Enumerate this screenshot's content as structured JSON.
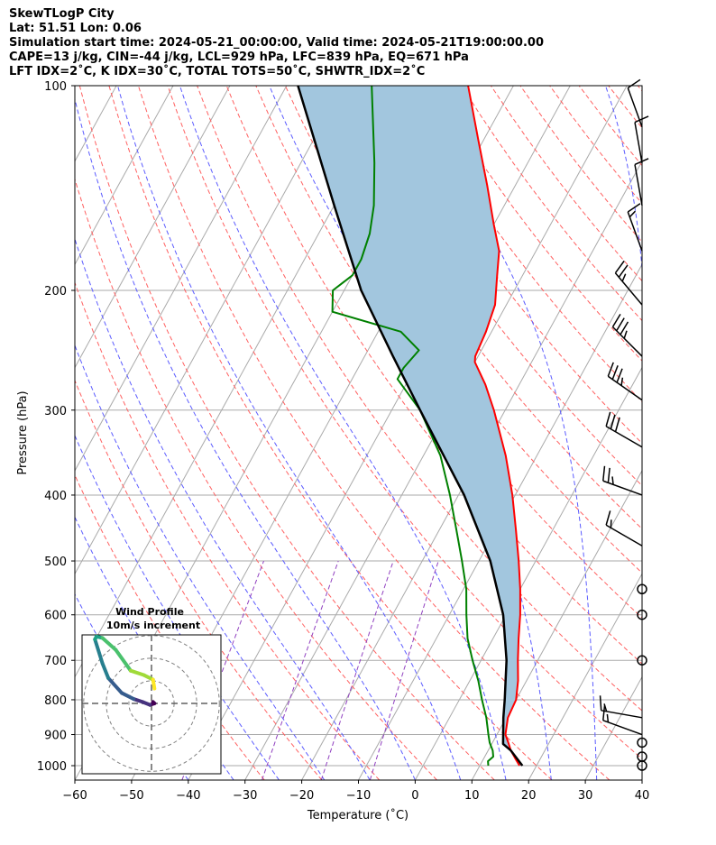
{
  "header": {
    "line1": "SkewTLogP City",
    "line2": "Lat: 51.51   Lon: 0.06",
    "line3": "Simulation start time: 2024-05-21_00:00:00, Valid time: 2024-05-21T19:00:00.00",
    "line4": "CAPE=13 j/kg, CIN=-44 j/kg, LCL=929 hPa, LFC=839 hPa, EQ=671 hPa",
    "line5": "LFT IDX=2˚C, K IDX=30˚C, TOTAL TOTS=50˚C, SHWTR_IDX=2˚C"
  },
  "chart_data": {
    "type": "skew-t log-p",
    "xlabel": "Temperature (˚C)",
    "ylabel": "Pressure (hPa)",
    "x_ticks": [
      "−60",
      "−50",
      "−40",
      "−30",
      "−20",
      "−10",
      "0",
      "10",
      "20",
      "30",
      "40"
    ],
    "y_ticks": [
      "100",
      "200",
      "300",
      "400",
      "500",
      "600",
      "700",
      "800",
      "900",
      "1000"
    ],
    "xlim": [
      -60,
      40
    ],
    "ylim": [
      1050,
      100
    ],
    "temperature_profile": [
      {
        "p": 1000,
        "t": 17.0
      },
      {
        "p": 975,
        "t": 15.5
      },
      {
        "p": 950,
        "t": 14.0
      },
      {
        "p": 925,
        "t": 12.8
      },
      {
        "p": 900,
        "t": 11.5
      },
      {
        "p": 850,
        "t": 10.3
      },
      {
        "p": 800,
        "t": 10.0
      },
      {
        "p": 750,
        "t": 8.5
      },
      {
        "p": 700,
        "t": 6.5
      },
      {
        "p": 650,
        "t": 4.5
      },
      {
        "p": 600,
        "t": 2.5
      },
      {
        "p": 550,
        "t": 0.0
      },
      {
        "p": 500,
        "t": -3.0
      },
      {
        "p": 450,
        "t": -6.5
      },
      {
        "p": 400,
        "t": -10.5
      },
      {
        "p": 350,
        "t": -15.5
      },
      {
        "p": 300,
        "t": -22.0
      },
      {
        "p": 275,
        "t": -26.0
      },
      {
        "p": 255,
        "t": -30.0
      },
      {
        "p": 250,
        "t": -30.5
      },
      {
        "p": 230,
        "t": -31.0
      },
      {
        "p": 210,
        "t": -32.0
      },
      {
        "p": 190,
        "t": -34.5
      },
      {
        "p": 175,
        "t": -36.5
      },
      {
        "p": 160,
        "t": -40.0
      },
      {
        "p": 140,
        "t": -45.0
      },
      {
        "p": 120,
        "t": -51.0
      },
      {
        "p": 100,
        "t": -58.0
      }
    ],
    "dewpoint_profile": [
      {
        "p": 1000,
        "t": 11.5
      },
      {
        "p": 985,
        "t": 11.0
      },
      {
        "p": 970,
        "t": 11.5
      },
      {
        "p": 950,
        "t": 10.8
      },
      {
        "p": 925,
        "t": 9.5
      },
      {
        "p": 900,
        "t": 8.5
      },
      {
        "p": 850,
        "t": 6.5
      },
      {
        "p": 800,
        "t": 4.0
      },
      {
        "p": 750,
        "t": 1.5
      },
      {
        "p": 700,
        "t": -1.5
      },
      {
        "p": 650,
        "t": -4.5
      },
      {
        "p": 600,
        "t": -7.0
      },
      {
        "p": 550,
        "t": -9.5
      },
      {
        "p": 500,
        "t": -13.0
      },
      {
        "p": 450,
        "t": -17.0
      },
      {
        "p": 400,
        "t": -21.5
      },
      {
        "p": 350,
        "t": -27.0
      },
      {
        "p": 300,
        "t": -35.0
      },
      {
        "p": 270,
        "t": -42.0
      },
      {
        "p": 260,
        "t": -42.0
      },
      {
        "p": 245,
        "t": -41.0
      },
      {
        "p": 230,
        "t": -46.0
      },
      {
        "p": 215,
        "t": -60.0
      },
      {
        "p": 200,
        "t": -62.0
      },
      {
        "p": 190,
        "t": -60.0
      },
      {
        "p": 180,
        "t": -60.0
      },
      {
        "p": 165,
        "t": -61.0
      },
      {
        "p": 150,
        "t": -63.0
      },
      {
        "p": 130,
        "t": -67.0
      },
      {
        "p": 100,
        "t": -75.0
      }
    ],
    "parcel_profile": [
      {
        "p": 1000,
        "t": 17.5
      },
      {
        "p": 950,
        "t": 14.0
      },
      {
        "p": 929,
        "t": 12.0
      },
      {
        "p": 850,
        "t": 9.5
      },
      {
        "p": 800,
        "t": 8.0
      },
      {
        "p": 700,
        "t": 4.5
      },
      {
        "p": 600,
        "t": -0.5
      },
      {
        "p": 500,
        "t": -8.0
      },
      {
        "p": 400,
        "t": -19.0
      },
      {
        "p": 300,
        "t": -35.0
      },
      {
        "p": 250,
        "t": -45.0
      },
      {
        "p": 200,
        "t": -57.0
      },
      {
        "p": 150,
        "t": -70.0
      },
      {
        "p": 100,
        "t": -88.0
      }
    ],
    "wind_barbs": [
      {
        "p": 1000,
        "speed_kt": 0
      },
      {
        "p": 970,
        "speed_kt": 0
      },
      {
        "p": 925,
        "speed_kt": 0
      },
      {
        "p": 900,
        "speed_kt": 15,
        "dir": 290
      },
      {
        "p": 850,
        "speed_kt": 15,
        "dir": 280
      },
      {
        "p": 700,
        "speed_kt": 0
      },
      {
        "p": 600,
        "speed_kt": 0
      },
      {
        "p": 550,
        "speed_kt": 0
      },
      {
        "p": 475,
        "speed_kt": 15,
        "dir": 300
      },
      {
        "p": 400,
        "speed_kt": 25,
        "dir": 290
      },
      {
        "p": 340,
        "speed_kt": 30,
        "dir": 300
      },
      {
        "p": 290,
        "speed_kt": 35,
        "dir": 305
      },
      {
        "p": 250,
        "speed_kt": 35,
        "dir": 315
      },
      {
        "p": 210,
        "speed_kt": 25,
        "dir": 320
      },
      {
        "p": 175,
        "speed_kt": 15,
        "dir": 340
      },
      {
        "p": 150,
        "speed_kt": 10,
        "dir": 350
      },
      {
        "p": 130,
        "speed_kt": 10,
        "dir": 350
      },
      {
        "p": 115,
        "speed_kt": 10,
        "dir": 340
      }
    ],
    "inset": {
      "title": "Wind Profile",
      "subtitle": "10m/s increment",
      "hodograph": [
        {
          "u": 0.5,
          "v": 0.5
        },
        {
          "u": 1.0,
          "v": 0.0
        },
        {
          "u": -0.5,
          "v": -0.5
        },
        {
          "u": -3.0,
          "v": 0.5
        },
        {
          "u": -6.0,
          "v": 1.5
        },
        {
          "u": -10.0,
          "v": 3.5
        },
        {
          "u": -14.5,
          "v": 8.5
        },
        {
          "u": -16.5,
          "v": 13.5
        },
        {
          "u": -19.0,
          "v": 21.5
        },
        {
          "u": -18.5,
          "v": 22.5
        },
        {
          "u": -16.5,
          "v": 22.0
        },
        {
          "u": -12.0,
          "v": 18.0
        },
        {
          "u": -7.0,
          "v": 11.0
        },
        {
          "u": -2.5,
          "v": 9.5
        },
        {
          "u": 0.5,
          "v": 8.0
        },
        {
          "u": 1.0,
          "v": 5.0
        }
      ]
    },
    "colors": {
      "temperature": "#ff0000",
      "dewpoint": "#008000",
      "parcel": "#000000",
      "cape_fill": "#a2c6de",
      "isotherm": "#aaaaaa",
      "dry_adiabat": "#ff6060",
      "moist_adiabat": "#5c5cff",
      "mixing_ratio": "#9040c0",
      "grid": "#aaaaaa"
    }
  }
}
